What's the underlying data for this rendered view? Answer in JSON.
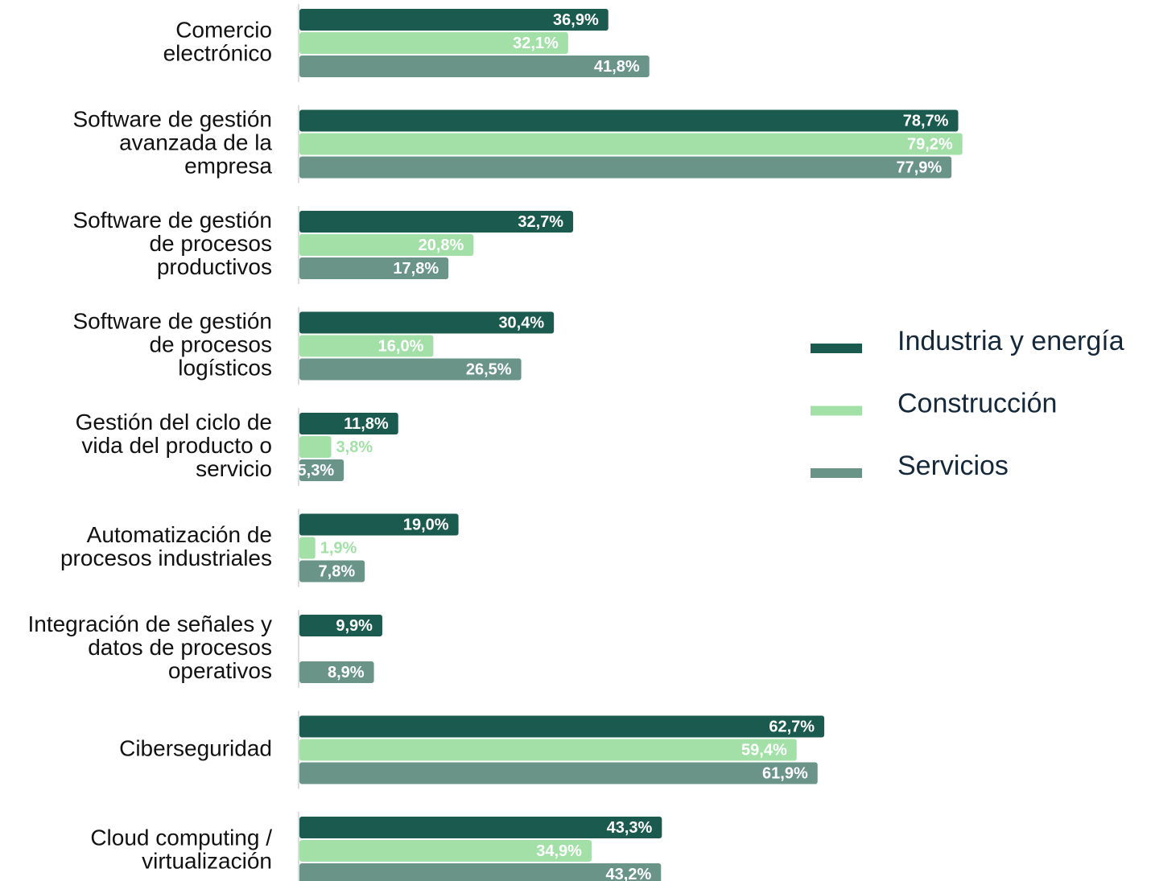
{
  "chart_data": {
    "type": "bar",
    "orientation": "horizontal",
    "categories": [
      [
        "Comercio",
        "electrónico"
      ],
      [
        "Software de gestión",
        "avanzada de la",
        "empresa"
      ],
      [
        "Software de gestión",
        "de procesos",
        "productivos"
      ],
      [
        "Software de gestión",
        "de procesos",
        "logísticos"
      ],
      [
        "Gestión del ciclo de",
        "vida del producto o",
        "servicio"
      ],
      [
        "Automatización de",
        "procesos industriales"
      ],
      [
        "Integración de señales y",
        "datos de procesos",
        "operativos"
      ],
      [
        "Ciberseguridad"
      ],
      [
        "Cloud computing /",
        "virtualización"
      ]
    ],
    "series": [
      {
        "name": "Industria y energía",
        "color": "#1b5a4e",
        "values": [
          36.9,
          78.7,
          32.7,
          30.4,
          11.8,
          19.0,
          9.9,
          62.7,
          43.3
        ],
        "value_labels": [
          "36,9%",
          "78,7%",
          "32,7%",
          "30,4%",
          "11,8%",
          "19,0%",
          "9,9%",
          "62,7%",
          "43,3%"
        ]
      },
      {
        "name": "Construcción",
        "color": "#a3e0a8",
        "values": [
          32.1,
          79.2,
          20.8,
          16.0,
          3.8,
          1.9,
          null,
          59.4,
          34.9
        ],
        "value_labels": [
          "32,1%",
          "79,2%",
          "20,8%",
          "16,0%",
          "3,8%",
          "1,9%",
          null,
          "59,4%",
          "34,9%"
        ]
      },
      {
        "name": "Servicios",
        "color": "#6a9488",
        "values": [
          41.8,
          77.9,
          17.8,
          26.5,
          5.3,
          7.8,
          8.9,
          61.9,
          43.2
        ],
        "value_labels": [
          "41,8%",
          "77,9%",
          "17,8%",
          "26,5%",
          "5,3%",
          "7,8%",
          "8,9%",
          "61,9%",
          "43,2%"
        ]
      }
    ],
    "xlim": [
      0,
      80
    ],
    "legend": "right"
  }
}
